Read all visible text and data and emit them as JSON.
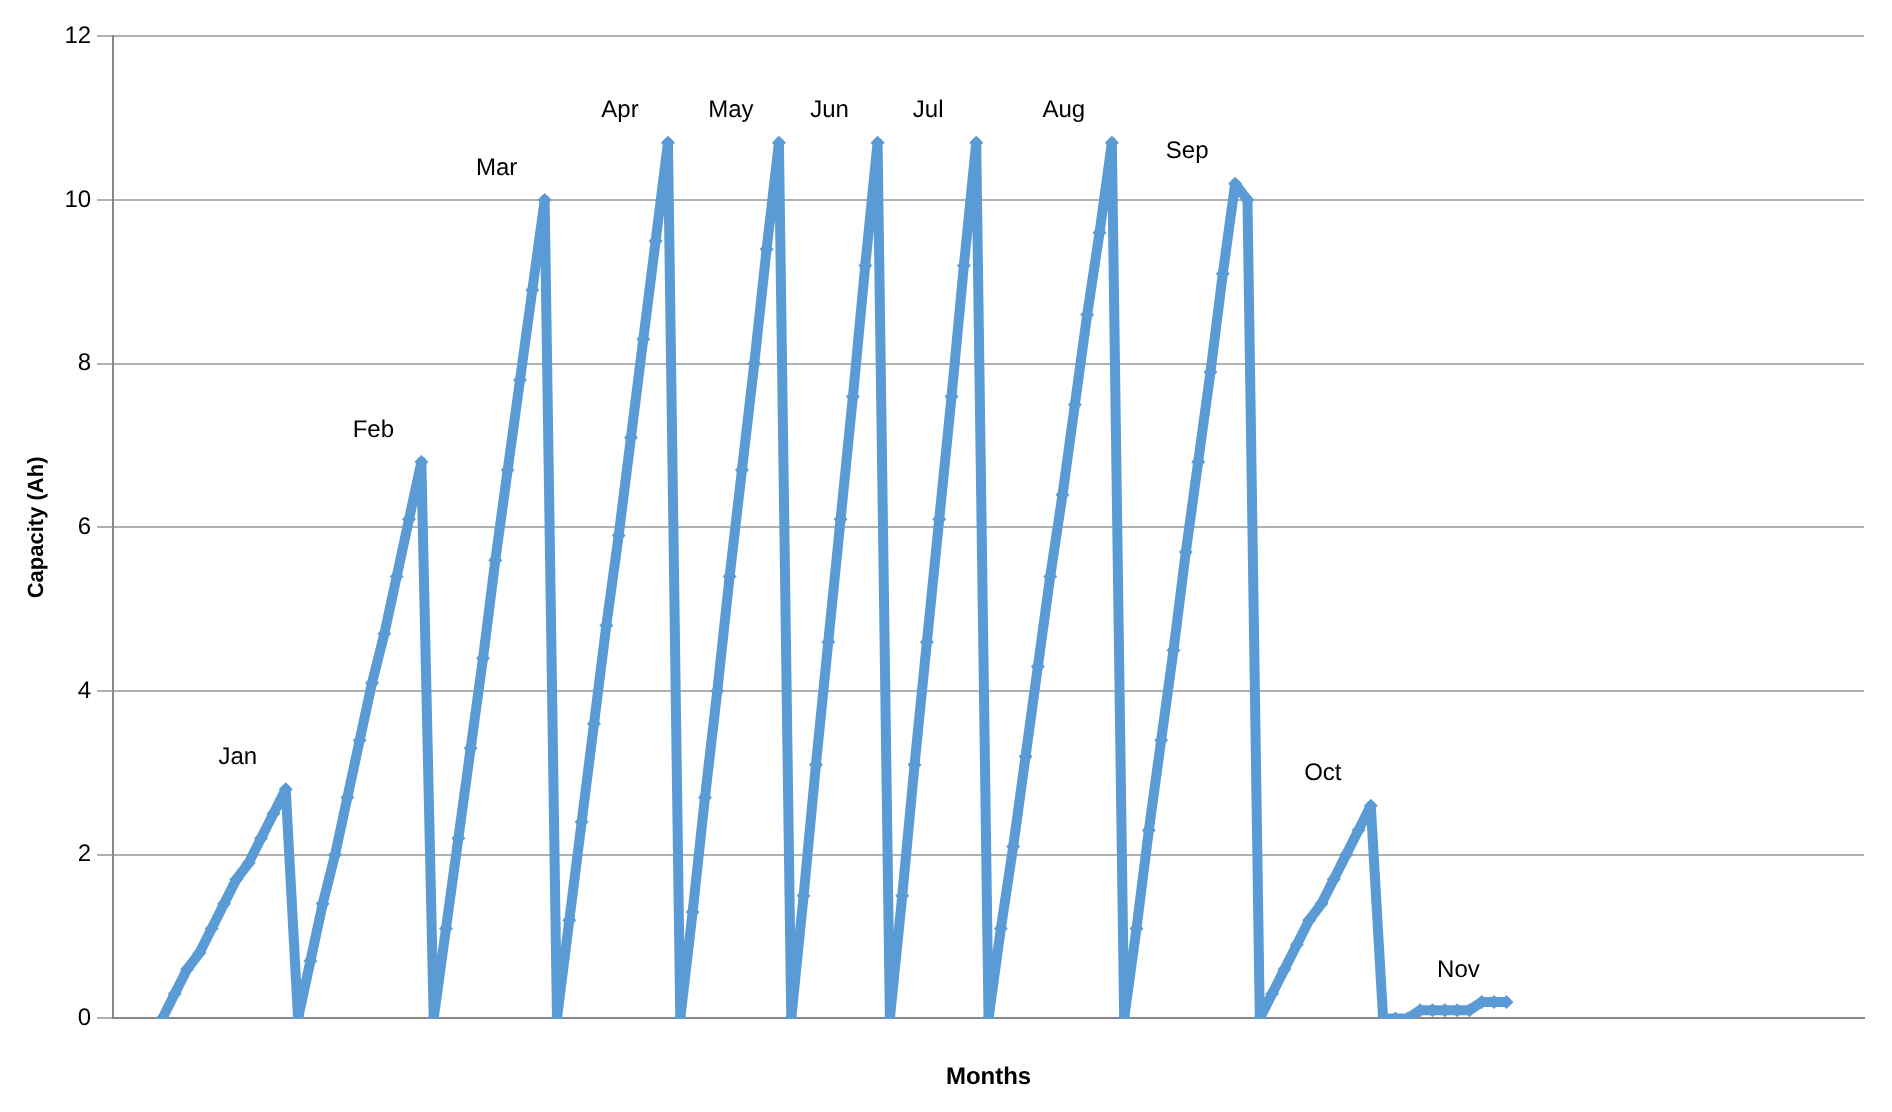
{
  "chart_data": {
    "type": "line",
    "xlabel": "Months",
    "ylabel": "Capacity (Ah)",
    "ylim": [
      0,
      12
    ],
    "yticks": [
      0,
      2,
      4,
      6,
      8,
      10,
      12
    ],
    "grid": "y",
    "legend": false,
    "marker": "diamond",
    "line_style": "solid",
    "categories": [
      null,
      null,
      null,
      null,
      null,
      null,
      null,
      null,
      null,
      null,
      null,
      null,
      null,
      null,
      null,
      null,
      null,
      null,
      null,
      null,
      null,
      null,
      null,
      null,
      null,
      null,
      null,
      null,
      null,
      null,
      null,
      null,
      null,
      null,
      null,
      null,
      null,
      null,
      null,
      null,
      null,
      null,
      null,
      null,
      null,
      null,
      null,
      null,
      null,
      null,
      null,
      null,
      null,
      null,
      null,
      null,
      null,
      null,
      null,
      null,
      null,
      null,
      null,
      null,
      null,
      null,
      null,
      null,
      null,
      null,
      null,
      null,
      null,
      null,
      null,
      null,
      null,
      null,
      null,
      null,
      null,
      null,
      null,
      null,
      null,
      null,
      null,
      null,
      null,
      null,
      null,
      null,
      null,
      null,
      null,
      null,
      null,
      null,
      null,
      null,
      null,
      null,
      null,
      null,
      null,
      null,
      null,
      null,
      null,
      null,
      null,
      null,
      null,
      null,
      null,
      null,
      null,
      null,
      null,
      null,
      null,
      null,
      null,
      null,
      null,
      null,
      null,
      null,
      null,
      null,
      null,
      null,
      null,
      null,
      null,
      null,
      null,
      null,
      null,
      null,
      null,
      null,
      null
    ],
    "series": [
      {
        "color": "#5b9bd5",
        "values": [
          null,
          null,
          null,
          null,
          0,
          0.3,
          0.6,
          0.8,
          1.1,
          1.4,
          1.7,
          1.9,
          2.2,
          2.5,
          2.8,
          0,
          0.7,
          1.4,
          2.0,
          2.7,
          3.4,
          4.1,
          4.7,
          5.4,
          6.1,
          6.8,
          0,
          1.1,
          2.2,
          3.3,
          4.4,
          5.6,
          6.7,
          7.8,
          8.9,
          10,
          0,
          1.2,
          2.4,
          3.6,
          4.8,
          5.9,
          7.1,
          8.3,
          9.5,
          10.7,
          0,
          1.3,
          2.7,
          4.0,
          5.4,
          6.7,
          8.0,
          9.4,
          10.7,
          0,
          1.5,
          3.1,
          4.6,
          6.1,
          7.6,
          9.2,
          10.7,
          0,
          1.5,
          3.1,
          4.6,
          6.1,
          7.6,
          9.2,
          10.7,
          0,
          1.1,
          2.1,
          3.2,
          4.3,
          5.4,
          6.4,
          7.5,
          8.6,
          9.6,
          10.7,
          0,
          1.1,
          2.3,
          3.4,
          4.5,
          5.7,
          6.8,
          7.9,
          9.1,
          10.2,
          10,
          0,
          0.3,
          0.6,
          0.9,
          1.2,
          1.4,
          1.7,
          2.0,
          2.3,
          2.6,
          0,
          0,
          0,
          0.1,
          0.1,
          0.1,
          0.1,
          0.1,
          0.2,
          0.2,
          0.2,
          null,
          null,
          null,
          null,
          null,
          null,
          null,
          null,
          null,
          null,
          null,
          null,
          null,
          null,
          null,
          null,
          null,
          null,
          null,
          null,
          null,
          null,
          null,
          null,
          null,
          null,
          null,
          null,
          null
        ]
      }
    ],
    "annotations": [
      "Jan",
      "Feb",
      "Mar",
      "Apr",
      "May",
      "Jun",
      "Jul",
      "Aug",
      "Sep",
      "Oct",
      "Nov"
    ]
  }
}
